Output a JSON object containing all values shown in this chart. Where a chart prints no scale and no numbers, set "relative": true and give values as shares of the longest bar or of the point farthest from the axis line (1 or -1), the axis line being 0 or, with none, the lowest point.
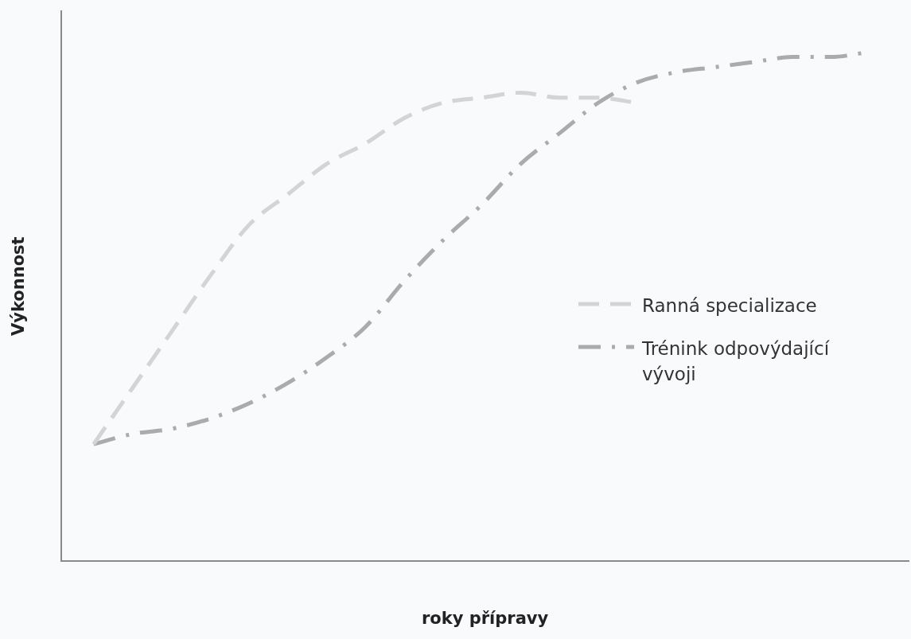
{
  "chart_data": {
    "type": "line",
    "relative": true,
    "xlabel": "roky přípravy",
    "ylabel": "Výkonnost",
    "legend": "right",
    "marker": "none",
    "categories": [
      null,
      null,
      null,
      null,
      null,
      null,
      null,
      null,
      null,
      null,
      null,
      null,
      null,
      null,
      null,
      null,
      null,
      null,
      null,
      null,
      null
    ],
    "series": [
      {
        "name": "Ranná specializace",
        "color": "#d4d4d4",
        "line_style": "dashed",
        "values": [
          0.23,
          0.34,
          0.45,
          0.56,
          0.66,
          0.72,
          0.78,
          0.82,
          0.87,
          0.9,
          0.91,
          0.92,
          0.91,
          0.91,
          0.9,
          null,
          null,
          null,
          null,
          null,
          null
        ]
      },
      {
        "name": "Trénink odpovýdající vývoji",
        "color": "#ababab",
        "line_style": "dashdot",
        "values": [
          0.23,
          0.25,
          0.26,
          0.28,
          0.31,
          0.35,
          0.4,
          0.46,
          0.55,
          0.63,
          0.7,
          0.78,
          0.84,
          0.9,
          0.94,
          0.96,
          0.97,
          0.98,
          0.99,
          0.99,
          1
        ]
      }
    ]
  }
}
